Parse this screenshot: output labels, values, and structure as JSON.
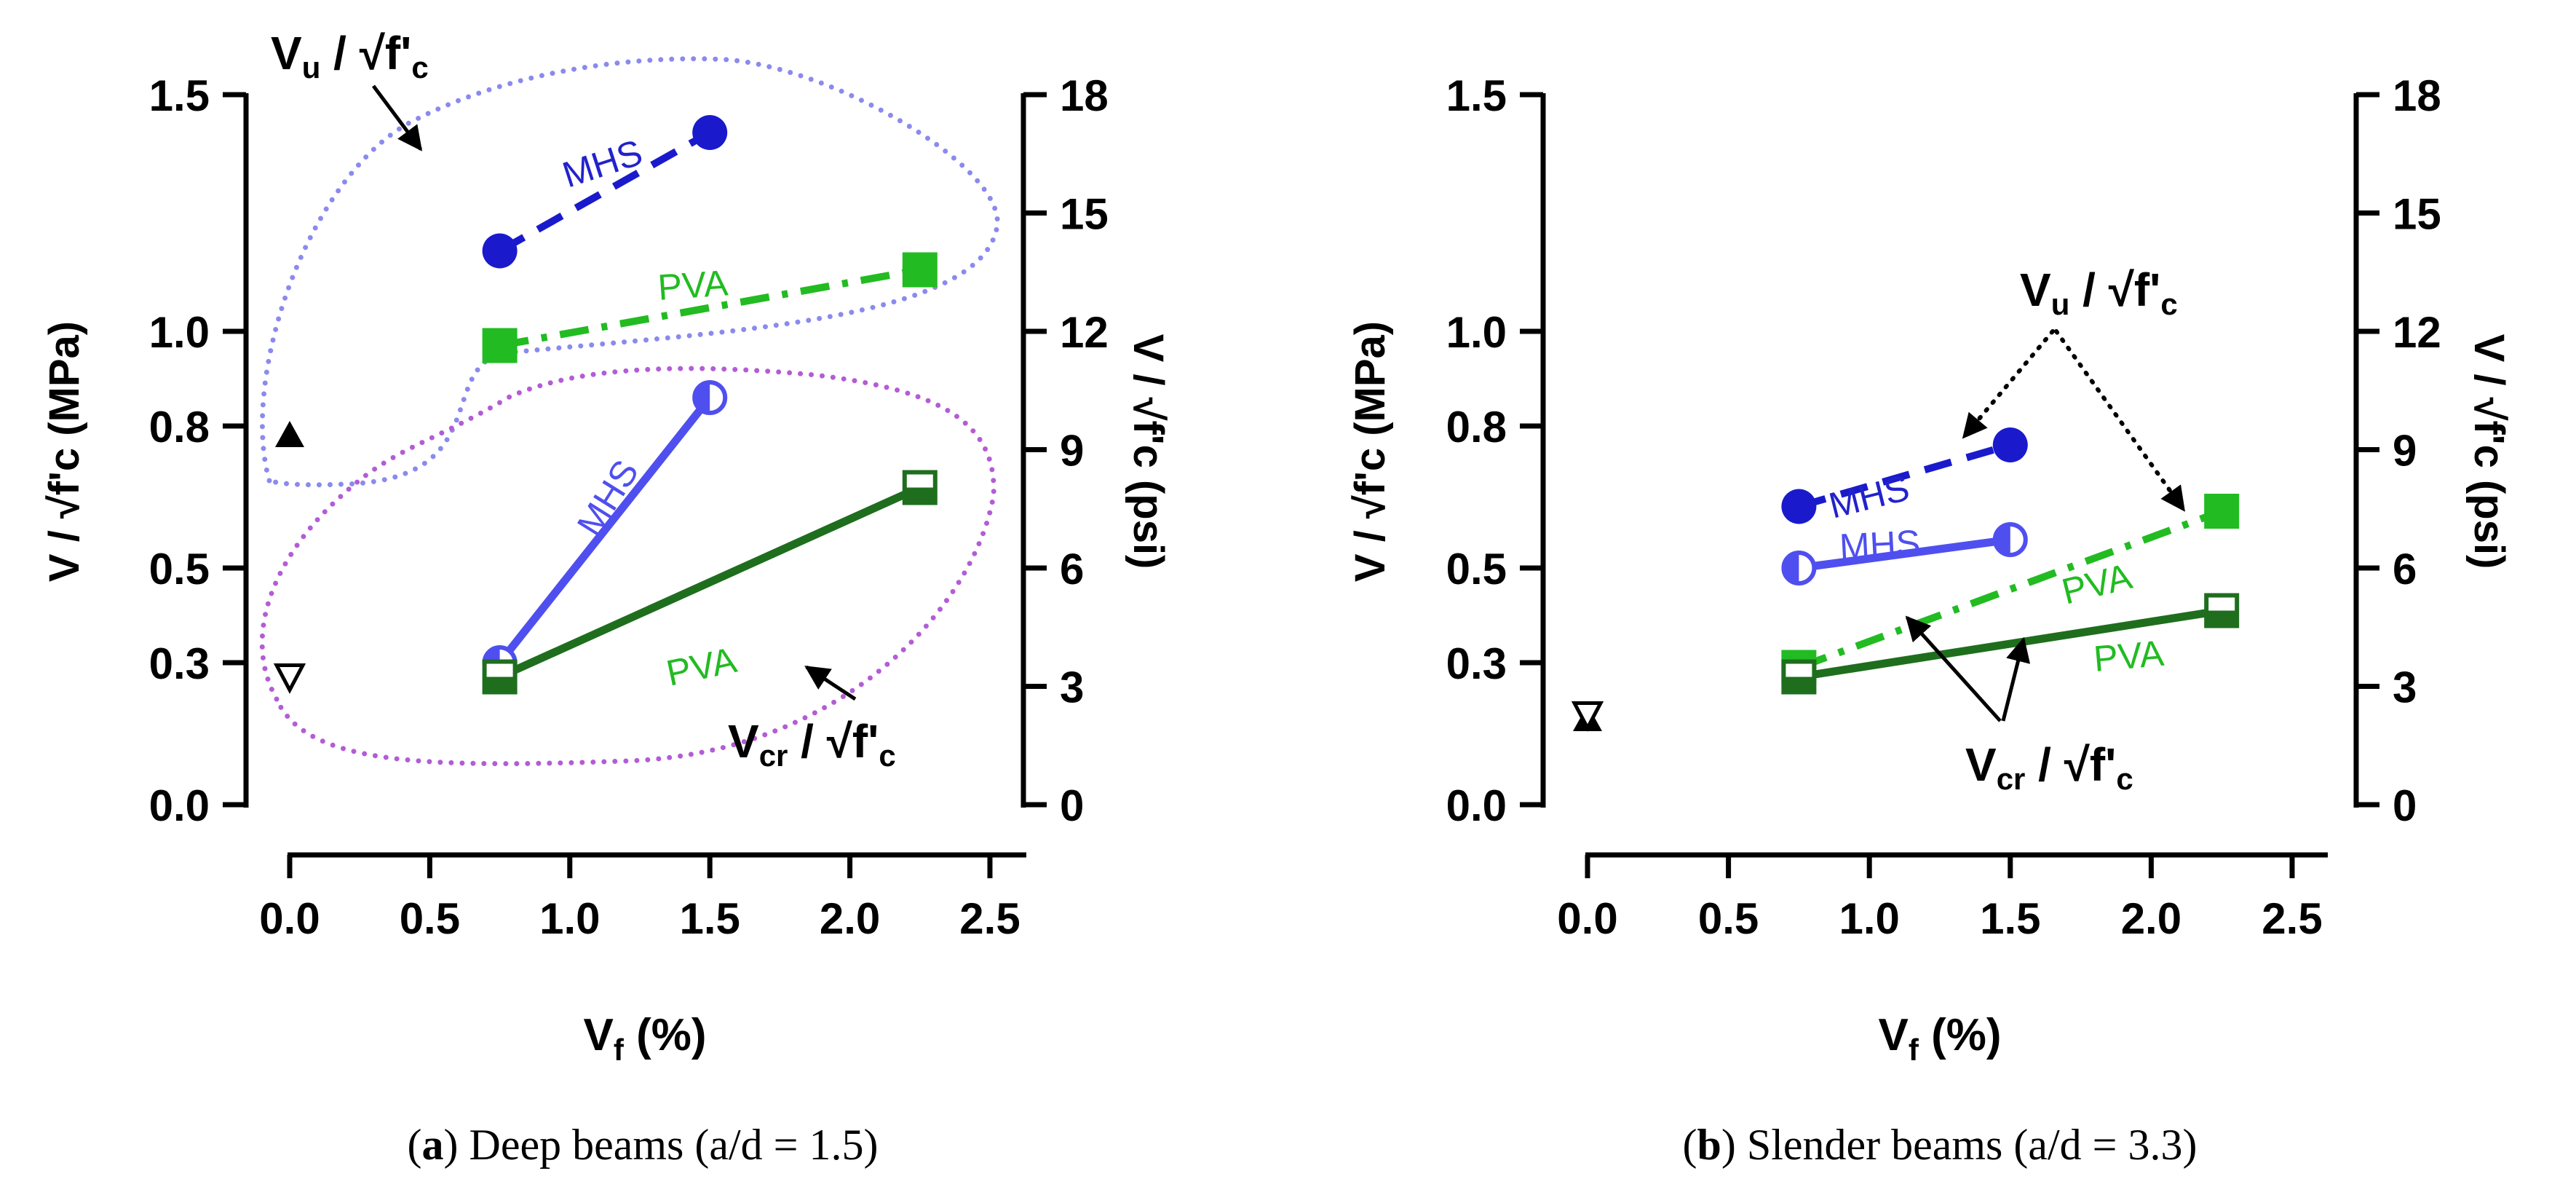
{
  "chart_data": [
    {
      "id": "a",
      "type": "line",
      "caption_letter": "a",
      "caption_text": " Deep beams (a/d = 1.5)",
      "xlabel_main": "V",
      "xlabel_sub": "f",
      "xlabel_tail": " (%)",
      "ylabel_left": "V / √f'c (MPa)",
      "ylabel_right": "V / √f'c (psi)",
      "xlim": [
        0,
        2.5
      ],
      "ylim": [
        0,
        1.5
      ],
      "y2lim": [
        0,
        18
      ],
      "x_ticks": [
        0.0,
        0.5,
        1.0,
        1.5,
        2.0,
        2.5
      ],
      "x_tick_labels": [
        "0.0",
        "0.5",
        "1.0",
        "1.5",
        "2.0",
        "2.5"
      ],
      "y_ticks": [
        0.0,
        0.3,
        0.5,
        0.8,
        1.0,
        1.5
      ],
      "y_tick_labels": [
        "0.0",
        "0.3",
        "0.5",
        "0.8",
        "1.0",
        "1.5"
      ],
      "y2_ticks": [
        0,
        3,
        6,
        9,
        12,
        15,
        18
      ],
      "y2_tick_labels": [
        "0",
        "3",
        "6",
        "9",
        "12",
        "15",
        "18"
      ],
      "series": [
        {
          "name": "MHS",
          "kind": "Vu",
          "color": "#1a1acc",
          "dash": "dashed",
          "marker": "circle-filled",
          "x": [
            0.75,
            1.5
          ],
          "y": [
            1.17,
            1.42
          ]
        },
        {
          "name": "PVA",
          "kind": "Vu",
          "color": "#22bb22",
          "dash": "dashdot",
          "marker": "square-filled",
          "x": [
            0.75,
            2.25
          ],
          "y": [
            0.97,
            1.13
          ]
        },
        {
          "name": "MHS",
          "kind": "Vcr",
          "color": "#4f4fef",
          "dash": "solid",
          "marker": "circle-half",
          "x": [
            0.75,
            1.5
          ],
          "y": [
            0.3,
            0.86
          ]
        },
        {
          "name": "PVA",
          "kind": "Vcr",
          "color": "#1e6e1e",
          "dash": "solid",
          "marker": "square-half",
          "x": [
            0.75,
            2.25
          ],
          "y": [
            0.27,
            0.67
          ]
        },
        {
          "name": "Plain Vu",
          "kind": "plain",
          "color": "#000000",
          "dash": "none",
          "marker": "triangle-up",
          "x": [
            0.0
          ],
          "y": [
            0.78
          ]
        },
        {
          "name": "Plain Vcr",
          "kind": "plain",
          "color": "#000000",
          "dash": "none",
          "marker": "triangle-down",
          "x": [
            0.0
          ],
          "y": [
            0.27
          ]
        }
      ],
      "annotations": {
        "vu_label": {
          "main": "V",
          "sub": "u",
          "tail": " / √f'",
          "sub2": "c"
        },
        "vcr_label": {
          "main": "V",
          "sub": "cr",
          "tail": " / √f'",
          "sub2": "c"
        },
        "line_labels": [
          "MHS",
          "PVA",
          "MHS",
          "PVA"
        ]
      }
    },
    {
      "id": "b",
      "type": "line",
      "caption_letter": "b",
      "caption_text": " Slender beams (a/d = 3.3)",
      "xlabel_main": "V",
      "xlabel_sub": "f",
      "xlabel_tail": " (%)",
      "ylabel_left": "V / √f'c (MPa)",
      "ylabel_right": "V / √f'c (psi)",
      "xlim": [
        0,
        2.5
      ],
      "ylim": [
        0,
        1.5
      ],
      "y2lim": [
        0,
        18
      ],
      "x_ticks": [
        0.0,
        0.5,
        1.0,
        1.5,
        2.0,
        2.5
      ],
      "x_tick_labels": [
        "0.0",
        "0.5",
        "1.0",
        "1.5",
        "2.0",
        "2.5"
      ],
      "y_ticks": [
        0.0,
        0.3,
        0.5,
        0.8,
        1.0,
        1.5
      ],
      "y_tick_labels": [
        "0.0",
        "0.3",
        "0.5",
        "0.8",
        "1.0",
        "1.5"
      ],
      "y2_ticks": [
        0,
        3,
        6,
        9,
        12,
        15,
        18
      ],
      "y2_tick_labels": [
        "0",
        "3",
        "6",
        "9",
        "12",
        "15",
        "18"
      ],
      "series": [
        {
          "name": "MHS",
          "kind": "Vu",
          "color": "#1a1acc",
          "dash": "dashed",
          "marker": "circle-filled",
          "x": [
            0.75,
            1.5
          ],
          "y": [
            0.63,
            0.76
          ]
        },
        {
          "name": "PVA",
          "kind": "Vu",
          "color": "#22bb22",
          "dash": "dashdot",
          "marker": "square-filled",
          "x": [
            0.75,
            2.25
          ],
          "y": [
            0.29,
            0.62
          ]
        },
        {
          "name": "MHS",
          "kind": "Vcr",
          "color": "#4f4fef",
          "dash": "solid",
          "marker": "circle-half",
          "x": [
            0.75,
            1.5
          ],
          "y": [
            0.5,
            0.56
          ]
        },
        {
          "name": "PVA",
          "kind": "Vcr",
          "color": "#1e6e1e",
          "dash": "solid",
          "marker": "square-half",
          "x": [
            0.75,
            2.25
          ],
          "y": [
            0.27,
            0.41
          ]
        },
        {
          "name": "Plain Vu",
          "kind": "plain",
          "color": "#000000",
          "dash": "none",
          "marker": "triangle-up",
          "x": [
            0.0
          ],
          "y": [
            0.18
          ]
        },
        {
          "name": "Plain Vcr",
          "kind": "plain",
          "color": "#000000",
          "dash": "none",
          "marker": "triangle-down",
          "x": [
            0.0
          ],
          "y": [
            0.19
          ]
        }
      ],
      "annotations": {
        "vu_label": {
          "main": "V",
          "sub": "u",
          "tail": " / √f'",
          "sub2": "c"
        },
        "vcr_label": {
          "main": "V",
          "sub": "cr",
          "tail": " / √f'",
          "sub2": "c"
        },
        "line_labels": [
          "MHS",
          "MHS",
          "PVA",
          "PVA"
        ]
      }
    }
  ]
}
